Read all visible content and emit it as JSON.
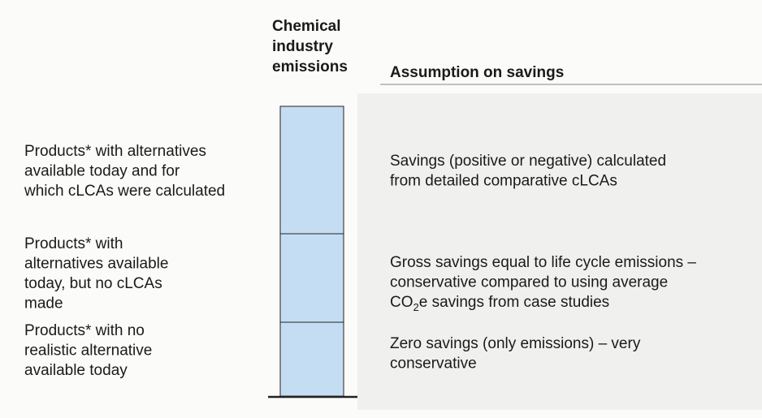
{
  "header": {
    "column": [
      "Chemical",
      "industry",
      "emissions"
    ],
    "assumption": "Assumption on savings"
  },
  "rows": [
    {
      "product": [
        "Products* with alternatives",
        "available today and for",
        "which cLCAs were calculated"
      ],
      "assumption": [
        "Savings (positive or negative) calculated",
        "from detailed comparative cLCAs"
      ]
    },
    {
      "product": [
        "Products* with",
        "alternatives available",
        "today, but no cLCAs",
        "made"
      ],
      "assumption": [
        "Gross savings equal to life cycle emissions –",
        "conservative compared to using average"
      ],
      "assumption_sub": {
        "before": "CO",
        "sub": "2",
        "after": "e savings from case studies"
      }
    },
    {
      "product": [
        "Products* with no",
        "realistic alternative",
        "available today"
      ],
      "assumption": [
        "Zero savings (only emissions) – very",
        "conservative"
      ]
    }
  ]
}
